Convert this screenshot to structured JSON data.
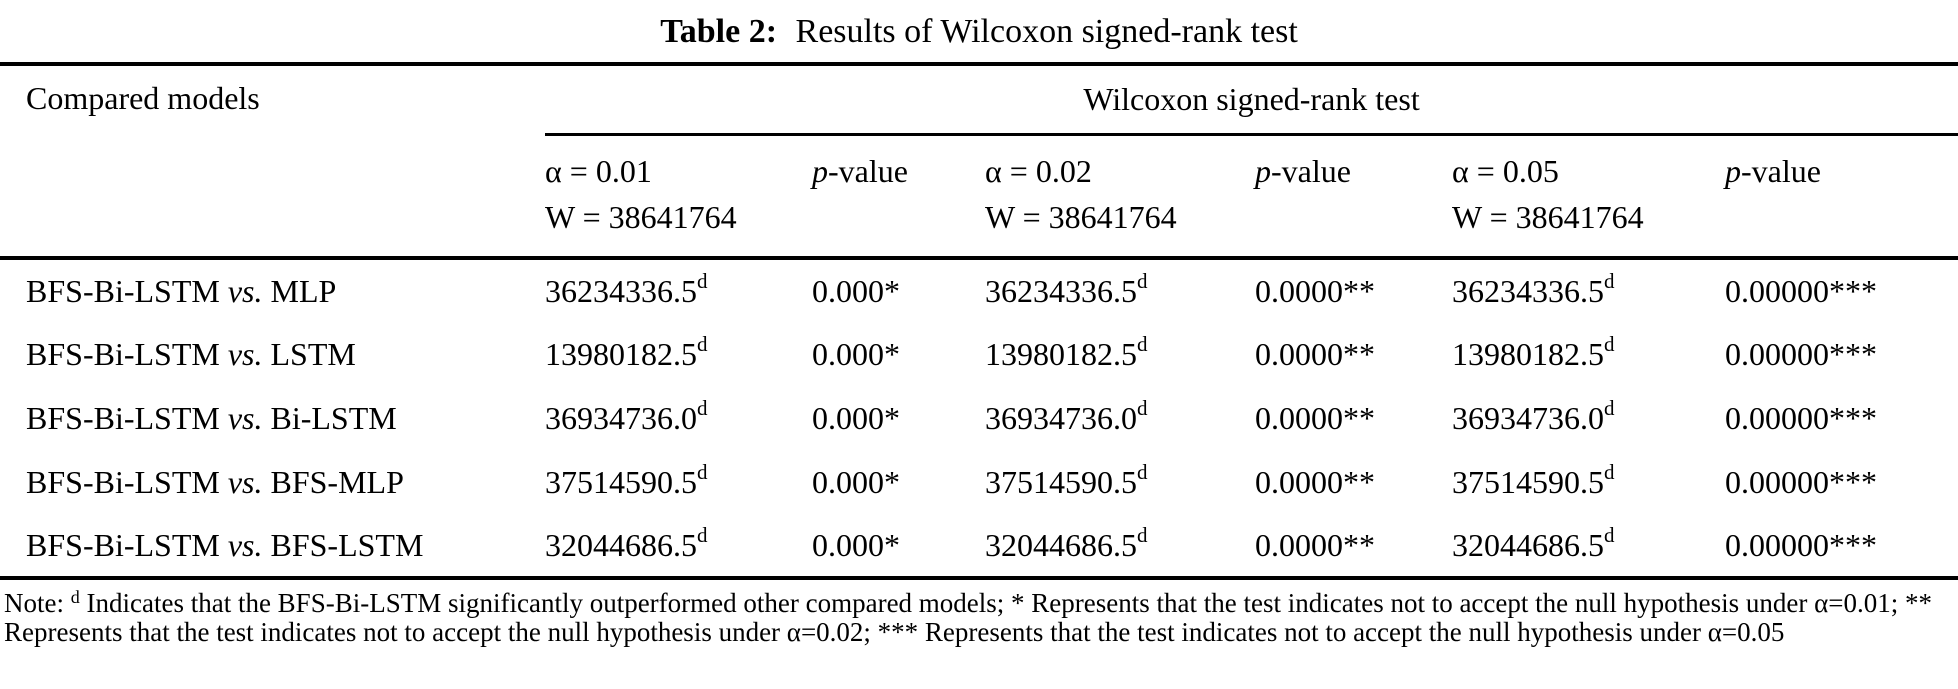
{
  "caption": {
    "label": "Table 2:",
    "text": "Results of Wilcoxon signed-rank test"
  },
  "table": {
    "corner_header": "Compared models",
    "group_header": "Wilcoxon signed-rank test",
    "sub_headers": [
      {
        "alpha": "α = 0.01",
        "w": "W = 38641764"
      },
      {
        "p": "p",
        "rest": "-value"
      },
      {
        "alpha": "α = 0.02",
        "w": "W = 38641764"
      },
      {
        "p": "p",
        "rest": "-value"
      },
      {
        "alpha": "α = 0.05",
        "w": "W = 38641764"
      },
      {
        "p": "p",
        "rest": "-value"
      }
    ],
    "rows": [
      {
        "model": {
          "base": "BFS-Bi-LSTM",
          "vs": "vs.",
          "other": "MLP"
        },
        "w1": {
          "value": "36234336.5",
          "sup": "d"
        },
        "p1": "0.000*",
        "w2": {
          "value": "36234336.5",
          "sup": "d"
        },
        "p2": "0.0000**",
        "w3": {
          "value": "36234336.5",
          "sup": "d"
        },
        "p3": "0.00000***"
      },
      {
        "model": {
          "base": "BFS-Bi-LSTM",
          "vs": "vs.",
          "other": "LSTM"
        },
        "w1": {
          "value": "13980182.5",
          "sup": "d"
        },
        "p1": "0.000*",
        "w2": {
          "value": "13980182.5",
          "sup": "d"
        },
        "p2": "0.0000**",
        "w3": {
          "value": "13980182.5",
          "sup": "d"
        },
        "p3": "0.00000***"
      },
      {
        "model": {
          "base": "BFS-Bi-LSTM",
          "vs": "vs.",
          "other": "Bi-LSTM"
        },
        "w1": {
          "value": "36934736.0",
          "sup": "d"
        },
        "p1": "0.000*",
        "w2": {
          "value": "36934736.0",
          "sup": "d"
        },
        "p2": "0.0000**",
        "w3": {
          "value": "36934736.0",
          "sup": "d"
        },
        "p3": "0.00000***"
      },
      {
        "model": {
          "base": "BFS-Bi-LSTM",
          "vs": "vs.",
          "other": "BFS-MLP"
        },
        "w1": {
          "value": "37514590.5",
          "sup": "d"
        },
        "p1": "0.000*",
        "w2": {
          "value": "37514590.5",
          "sup": "d"
        },
        "p2": "0.0000**",
        "w3": {
          "value": "37514590.5",
          "sup": "d"
        },
        "p3": "0.00000***"
      },
      {
        "model": {
          "base": "BFS-Bi-LSTM",
          "vs": "vs.",
          "other": "BFS-LSTM"
        },
        "w1": {
          "value": "32044686.5",
          "sup": "d"
        },
        "p1": "0.000*",
        "w2": {
          "value": "32044686.5",
          "sup": "d"
        },
        "p2": "0.0000**",
        "w3": {
          "value": "32044686.5",
          "sup": "d"
        },
        "p3": "0.00000***"
      }
    ]
  },
  "note": {
    "label": "Note:",
    "sup": "d",
    "text": "Indicates that the BFS-Bi-LSTM significantly outperformed other compared models; * Represents that the test indicates not to accept the null hypothesis under α=0.01; ** Represents that the test indicates not to accept the null hypothesis under α=0.02; *** Represents that the test indicates not to accept the null hypothesis under α=0.05"
  }
}
